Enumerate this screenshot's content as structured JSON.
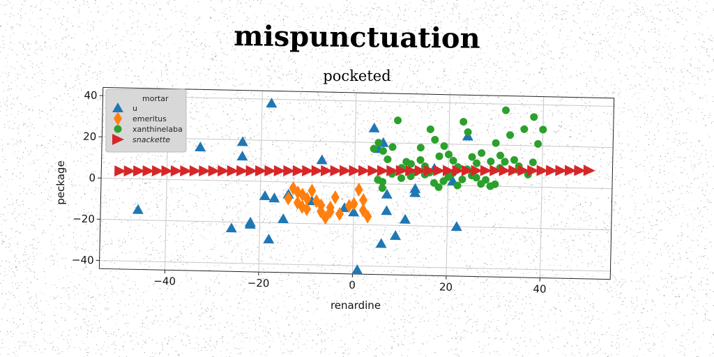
{
  "title": "mispunctuation",
  "chart_data": {
    "type": "scatter",
    "title": "pocketed",
    "xlabel": "renardine",
    "ylabel": "peckage",
    "xlim": [
      -54,
      55
    ],
    "ylim": [
      -44,
      44
    ],
    "xticks": [
      -40,
      -20,
      0,
      20,
      40
    ],
    "yticks": [
      -40,
      -20,
      0,
      20,
      40
    ],
    "grid": true,
    "legend_placement": "top-left",
    "legend_title": "mortar",
    "series": [
      {
        "name": "u",
        "marker": "triangle-up",
        "color": "#1f77b4",
        "points": [
          [
            -46,
            -15
          ],
          [
            -33,
            16
          ],
          [
            -24,
            19
          ],
          [
            -24,
            12
          ],
          [
            -19,
            -7
          ],
          [
            -18,
            38
          ],
          [
            -17,
            -8
          ],
          [
            -18,
            -28
          ],
          [
            -15,
            -18
          ],
          [
            -14,
            -6
          ],
          [
            -22,
            -21
          ],
          [
            -22,
            -20
          ],
          [
            -26,
            -23
          ],
          [
            -9,
            -9
          ],
          [
            -7,
            11
          ],
          [
            -2,
            -12
          ],
          [
            0,
            -14
          ],
          [
            1,
            -42
          ],
          [
            4,
            27
          ],
          [
            5,
            17
          ],
          [
            6,
            -29
          ],
          [
            6,
            20
          ],
          [
            7,
            -5
          ],
          [
            7,
            -13
          ],
          [
            9,
            -25
          ],
          [
            11,
            -17
          ],
          [
            13,
            -2
          ],
          [
            13,
            -4
          ],
          [
            17,
            8
          ],
          [
            22,
            -20
          ],
          [
            24,
            24
          ],
          [
            21,
            2
          ]
        ]
      },
      {
        "name": "emeritus",
        "marker": "diamond",
        "color": "#ff7f0e",
        "points": [
          [
            -14,
            -8
          ],
          [
            -13,
            -3
          ],
          [
            -12,
            -10
          ],
          [
            -11,
            -6
          ],
          [
            -10,
            -13
          ],
          [
            -9,
            -4
          ],
          [
            -8,
            -9
          ],
          [
            -7,
            -11
          ],
          [
            -6,
            -17
          ],
          [
            -5,
            -14
          ],
          [
            -4,
            -7
          ],
          [
            -3,
            -15
          ],
          [
            -12,
            -5
          ],
          [
            -10,
            -8
          ],
          [
            -1,
            -11
          ],
          [
            1,
            -3
          ],
          [
            2,
            -8
          ],
          [
            2,
            -13
          ],
          [
            3,
            -16
          ],
          [
            -7,
            -14
          ],
          [
            -5,
            -12
          ],
          [
            0,
            -10
          ],
          [
            -11,
            -12
          ]
        ]
      },
      {
        "name": "xanthinelaba",
        "marker": "circle",
        "color": "#2ca02c",
        "points": [
          [
            4,
            17
          ],
          [
            5,
            20
          ],
          [
            6,
            16
          ],
          [
            7,
            12
          ],
          [
            8,
            18
          ],
          [
            9,
            31
          ],
          [
            5,
            2
          ],
          [
            6,
            -2
          ],
          [
            10,
            8
          ],
          [
            11,
            11
          ],
          [
            12,
            10
          ],
          [
            13,
            6
          ],
          [
            14,
            12
          ],
          [
            15,
            9
          ],
          [
            16,
            27
          ],
          [
            17,
            22
          ],
          [
            14,
            18
          ],
          [
            18,
            14
          ],
          [
            19,
            19
          ],
          [
            20,
            15
          ],
          [
            21,
            12
          ],
          [
            22,
            9
          ],
          [
            23,
            31
          ],
          [
            24,
            26
          ],
          [
            25,
            14
          ],
          [
            26,
            11
          ],
          [
            27,
            16
          ],
          [
            28,
            3
          ],
          [
            29,
            12
          ],
          [
            30,
            21
          ],
          [
            31,
            15
          ],
          [
            32,
            37
          ],
          [
            33,
            25
          ],
          [
            34,
            13
          ],
          [
            35,
            10
          ],
          [
            36,
            28
          ],
          [
            37,
            6
          ],
          [
            38,
            34
          ],
          [
            39,
            21
          ],
          [
            40,
            28
          ],
          [
            22,
            0
          ],
          [
            20,
            4
          ],
          [
            18,
            -1
          ],
          [
            16,
            6
          ],
          [
            19,
            2
          ],
          [
            21,
            6
          ],
          [
            23,
            3
          ],
          [
            25,
            5
          ],
          [
            27,
            1
          ],
          [
            29,
            0
          ],
          [
            24,
            8
          ],
          [
            26,
            4
          ],
          [
            30,
            1
          ],
          [
            12,
            4
          ],
          [
            10,
            3
          ],
          [
            8,
            5
          ],
          [
            6,
            1
          ],
          [
            15,
            5
          ],
          [
            17,
            1
          ],
          [
            31,
            9
          ],
          [
            32,
            12
          ],
          [
            35,
            8
          ],
          [
            38,
            12
          ]
        ]
      },
      {
        "name": "snackette",
        "marker": "triangle-right",
        "color": "#d62728",
        "points": [
          [
            -50,
            3.6
          ],
          [
            -48,
            3.7
          ],
          [
            -46,
            3.8
          ],
          [
            -44,
            3.9
          ],
          [
            -42,
            4.0
          ],
          [
            -40,
            4.1
          ],
          [
            -38,
            4.2
          ],
          [
            -36,
            4.3
          ],
          [
            -34,
            4.4
          ],
          [
            -32,
            4.5
          ],
          [
            -30,
            4.6
          ],
          [
            -28,
            4.7
          ],
          [
            -26,
            4.8
          ],
          [
            -24,
            4.9
          ],
          [
            -22,
            5.0
          ],
          [
            -20,
            5.1
          ],
          [
            -18,
            5.2
          ],
          [
            -16,
            5.3
          ],
          [
            -14,
            5.4
          ],
          [
            -12,
            5.5
          ],
          [
            -10,
            5.6
          ],
          [
            -8,
            5.7
          ],
          [
            -6,
            5.8
          ],
          [
            -4,
            5.9
          ],
          [
            -2,
            6.0
          ],
          [
            0,
            6.1
          ],
          [
            2,
            6.2
          ],
          [
            4,
            6.3
          ],
          [
            6,
            6.4
          ],
          [
            8,
            6.5
          ],
          [
            10,
            6.6
          ],
          [
            12,
            6.7
          ],
          [
            14,
            6.8
          ],
          [
            16,
            6.9
          ],
          [
            18,
            7.0
          ],
          [
            20,
            7.1
          ],
          [
            22,
            7.2
          ],
          [
            24,
            7.3
          ],
          [
            26,
            7.4
          ],
          [
            28,
            7.5
          ],
          [
            30,
            7.6
          ],
          [
            32,
            7.7
          ],
          [
            34,
            7.8
          ],
          [
            36,
            7.9
          ],
          [
            38,
            8.0
          ],
          [
            40,
            8.1
          ],
          [
            42,
            8.2
          ],
          [
            44,
            8.3
          ],
          [
            46,
            8.4
          ],
          [
            48,
            8.5
          ],
          [
            50,
            8.6
          ]
        ]
      }
    ]
  }
}
